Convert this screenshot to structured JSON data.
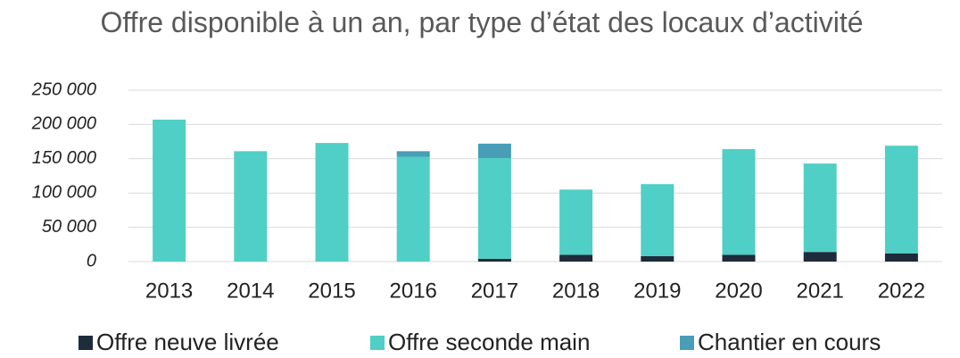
{
  "chart_data": {
    "type": "stacked_bar",
    "title": "Offre disponible à un an, par type d’état des locaux d’activité",
    "categories": [
      "2013",
      "2014",
      "2015",
      "2016",
      "2017",
      "2018",
      "2019",
      "2020",
      "2021",
      "2022"
    ],
    "series": [
      {
        "name": "Offre neuve livrée",
        "color": "#1e2b3a",
        "values": [
          0,
          0,
          0,
          0,
          4000,
          10000,
          8000,
          10000,
          14000,
          12000
        ]
      },
      {
        "name": "Offre seconde main",
        "color": "#4fcfc5",
        "values": [
          207000,
          161000,
          173000,
          153000,
          147000,
          95000,
          105000,
          154000,
          129000,
          157000
        ]
      },
      {
        "name": "Chantier en cours",
        "color": "#4a9db6",
        "values": [
          0,
          0,
          0,
          8000,
          21000,
          0,
          0,
          0,
          0,
          0
        ]
      }
    ],
    "ylim": [
      0,
      250000
    ],
    "yticks": [
      0,
      {
        "value": 50000,
        "label": "50 000"
      },
      {
        "value": 100000,
        "label": "100 000"
      },
      {
        "value": 150000,
        "label": "150 000"
      },
      {
        "value": 200000,
        "label": "200 000"
      },
      {
        "value": 250000,
        "label": "250 000"
      }
    ],
    "grid": true,
    "legend": "bottom"
  }
}
